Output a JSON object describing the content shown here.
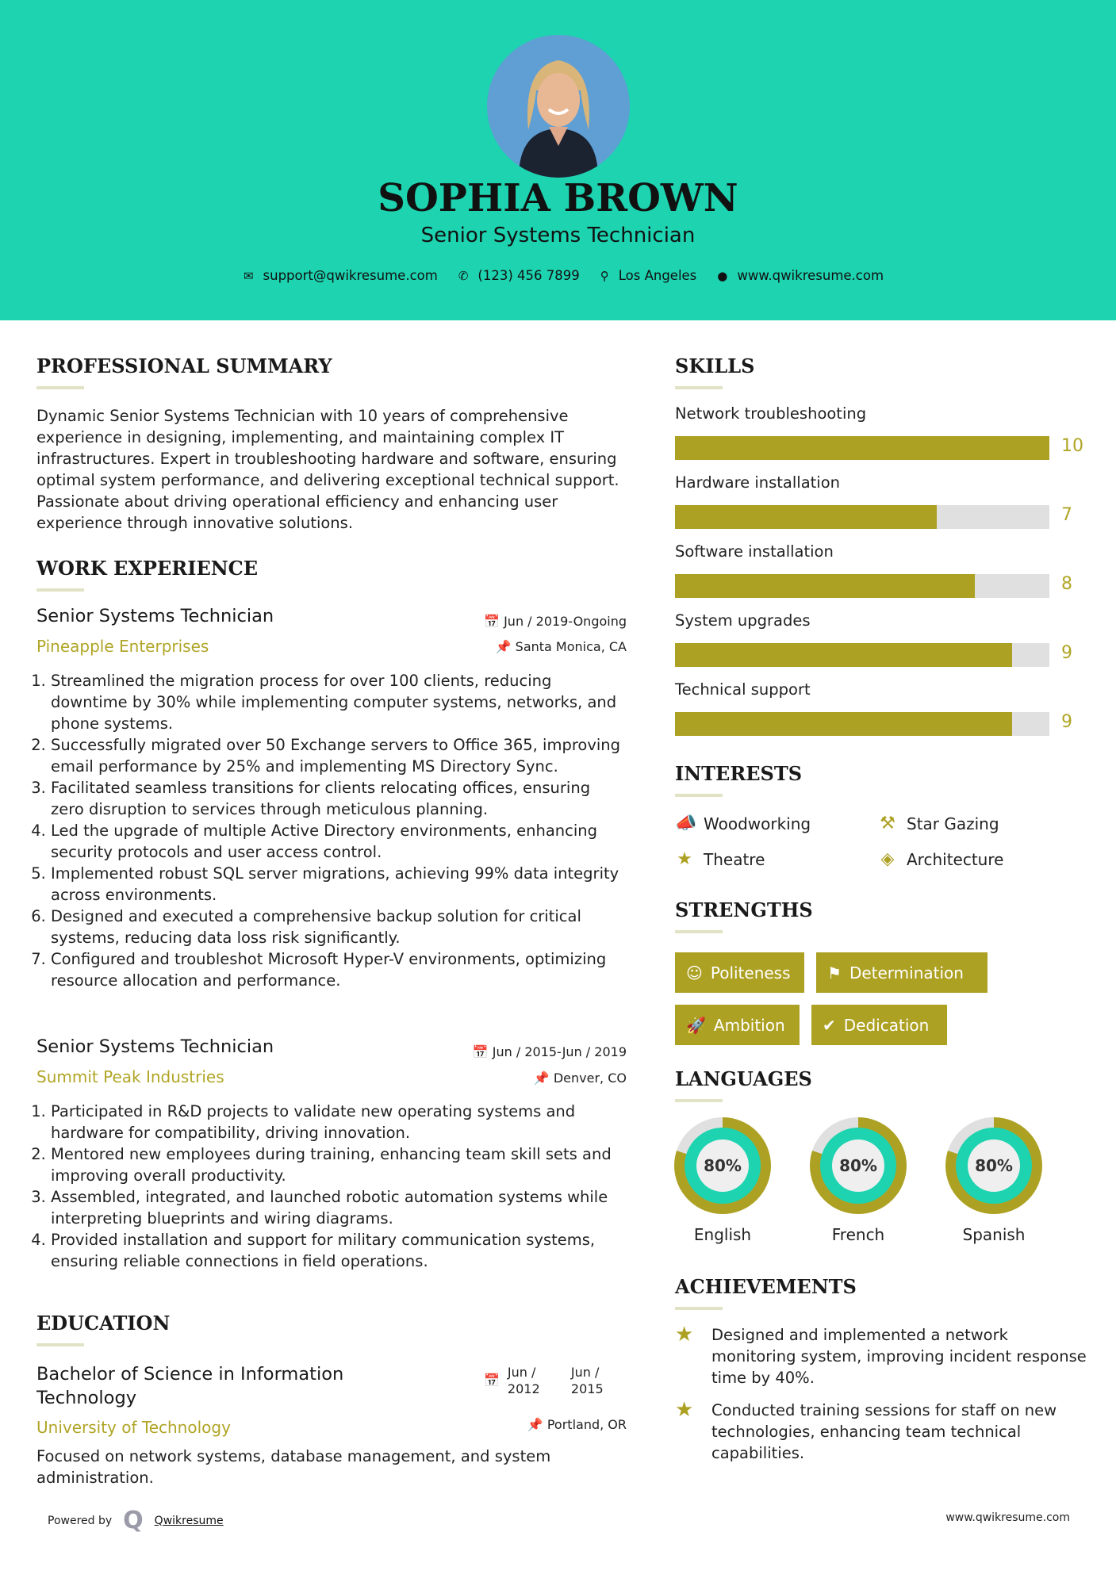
{
  "header": {
    "name": "SOPHIA BROWN",
    "title": "Senior Systems Technician",
    "contact": {
      "email": "support@qwikresume.com",
      "phone": "(123) 456 7899",
      "location": "Los Angeles",
      "website": "www.qwikresume.com"
    }
  },
  "summary": {
    "heading": "PROFESSIONAL SUMMARY",
    "text": "Dynamic Senior Systems Technician with 10 years of comprehensive experience in designing, implementing, and maintaining complex IT infrastructures. Expert in troubleshooting hardware and software, ensuring optimal system performance, and delivering exceptional technical support. Passionate about driving operational efficiency and enhancing user experience through innovative solutions."
  },
  "experience": {
    "heading": "WORK EXPERIENCE",
    "jobs": [
      {
        "title": "Senior Systems Technician",
        "company": "Pineapple Enterprises",
        "dates": "Jun / 2019-Ongoing",
        "location": "Santa Monica, CA",
        "bullets": [
          "Streamlined the migration process for over 100 clients, reducing downtime by 30% while implementing computer systems, networks, and phone systems.",
          "Successfully migrated over 50 Exchange servers to Office 365, improving email performance by 25% and implementing MS Directory Sync.",
          "Facilitated seamless transitions for clients relocating offices, ensuring zero disruption to services through meticulous planning.",
          "Led the upgrade of multiple Active Directory environments, enhancing security protocols and user access control.",
          "Implemented robust SQL server migrations, achieving 99% data integrity across environments.",
          "Designed and executed a comprehensive backup solution for critical systems, reducing data loss risk significantly.",
          "Configured and troubleshot Microsoft Hyper-V environments, optimizing resource allocation and performance."
        ]
      },
      {
        "title": "Senior Systems Technician",
        "company": "Summit Peak Industries",
        "dates": "Jun / 2015-Jun / 2019",
        "location": "Denver, CO",
        "bullets": [
          "Participated in R&D projects to validate new operating systems and hardware for compatibility, driving innovation.",
          "Mentored new employees during training, enhancing team skill sets and improving overall productivity.",
          "Assembled, integrated, and launched robotic automation systems while interpreting blueprints and wiring diagrams.",
          "Provided installation and support for military communication systems, ensuring reliable connections in field operations."
        ]
      }
    ]
  },
  "education": {
    "heading": "EDUCATION",
    "degree": "Bachelor of Science in Information Technology",
    "school": "University of Technology",
    "start": "Jun / 2012",
    "end": "Jun / 2015",
    "location": "Portland, OR",
    "description": "Focused on network systems, database management, and system administration."
  },
  "skills": {
    "heading": "SKILLS",
    "max": 10,
    "items": [
      {
        "name": "Network troubleshooting",
        "level": 10
      },
      {
        "name": "Hardware installation",
        "level": 7
      },
      {
        "name": "Software installation",
        "level": 8
      },
      {
        "name": "System upgrades",
        "level": 9
      },
      {
        "name": "Technical support",
        "level": 9
      }
    ]
  },
  "interests": {
    "heading": "INTERESTS",
    "items": [
      {
        "label": "Woodworking",
        "icon": "megaphone-icon"
      },
      {
        "label": "Star Gazing",
        "icon": "gavel-icon"
      },
      {
        "label": "Theatre",
        "icon": "star-icon"
      },
      {
        "label": "Architecture",
        "icon": "ruler-icon"
      }
    ]
  },
  "strengths": {
    "heading": "STRENGTHS",
    "items": [
      {
        "label": "Politeness",
        "icon": "smile-icon"
      },
      {
        "label": "Determination",
        "icon": "flag-icon"
      },
      {
        "label": "Ambition",
        "icon": "rocket-icon"
      },
      {
        "label": "Dedication",
        "icon": "check-circle-icon"
      }
    ]
  },
  "languages": {
    "heading": "LANGUAGES",
    "items": [
      {
        "name": "English",
        "percent": 80,
        "label": "80%"
      },
      {
        "name": "French",
        "percent": 80,
        "label": "80%"
      },
      {
        "name": "Spanish",
        "percent": 80,
        "label": "80%"
      }
    ]
  },
  "achievements": {
    "heading": "ACHIEVEMENTS",
    "items": [
      "Designed and implemented a network monitoring system, improving incident response time by 40%.",
      "Conducted training sessions for staff on new technologies, enhancing team technical capabilities."
    ]
  },
  "footer": {
    "powered_by": "Powered by",
    "brand": "Qwikresume",
    "website": "www.qwikresume.com"
  },
  "colors": {
    "header": "#1DD3B0",
    "accent": "#ADA123",
    "track": "#E0E0E0"
  }
}
